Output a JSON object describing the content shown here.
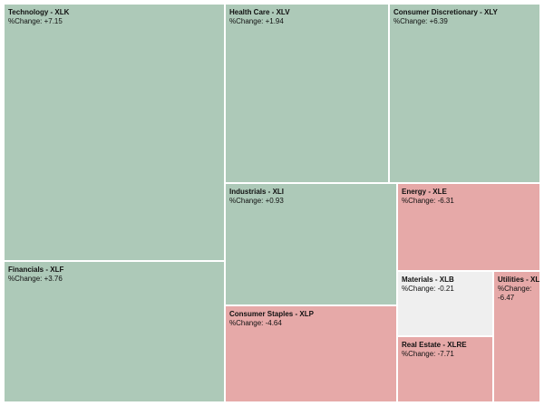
{
  "chart_data": {
    "type": "treemap",
    "change_prefix": "%Change: ",
    "colors": {
      "positive": "#adc9b8",
      "negative": "#e6a9a8",
      "neutral": "#efefef",
      "border": "#ffffff"
    },
    "items": [
      {
        "name": "Technology - XLK",
        "change": "+7.15",
        "sign": "positive"
      },
      {
        "name": "Financials - XLF",
        "change": "+3.76",
        "sign": "positive"
      },
      {
        "name": "Health Care - XLV",
        "change": "+1.94",
        "sign": "positive"
      },
      {
        "name": "Consumer Discretionary - XLY",
        "change": "+6.39",
        "sign": "positive"
      },
      {
        "name": "Industrials - XLI",
        "change": "+0.93",
        "sign": "positive"
      },
      {
        "name": "Energy - XLE",
        "change": "-6.31",
        "sign": "negative"
      },
      {
        "name": "Consumer Staples - XLP",
        "change": "-4.64",
        "sign": "negative"
      },
      {
        "name": "Materials - XLB",
        "change": "-0.21",
        "sign": "neutral"
      },
      {
        "name": "Utilities - XLU",
        "change": "-6.47",
        "sign": "negative"
      },
      {
        "name": "Real Estate - XLRE",
        "change": "-7.71",
        "sign": "negative"
      }
    ]
  }
}
